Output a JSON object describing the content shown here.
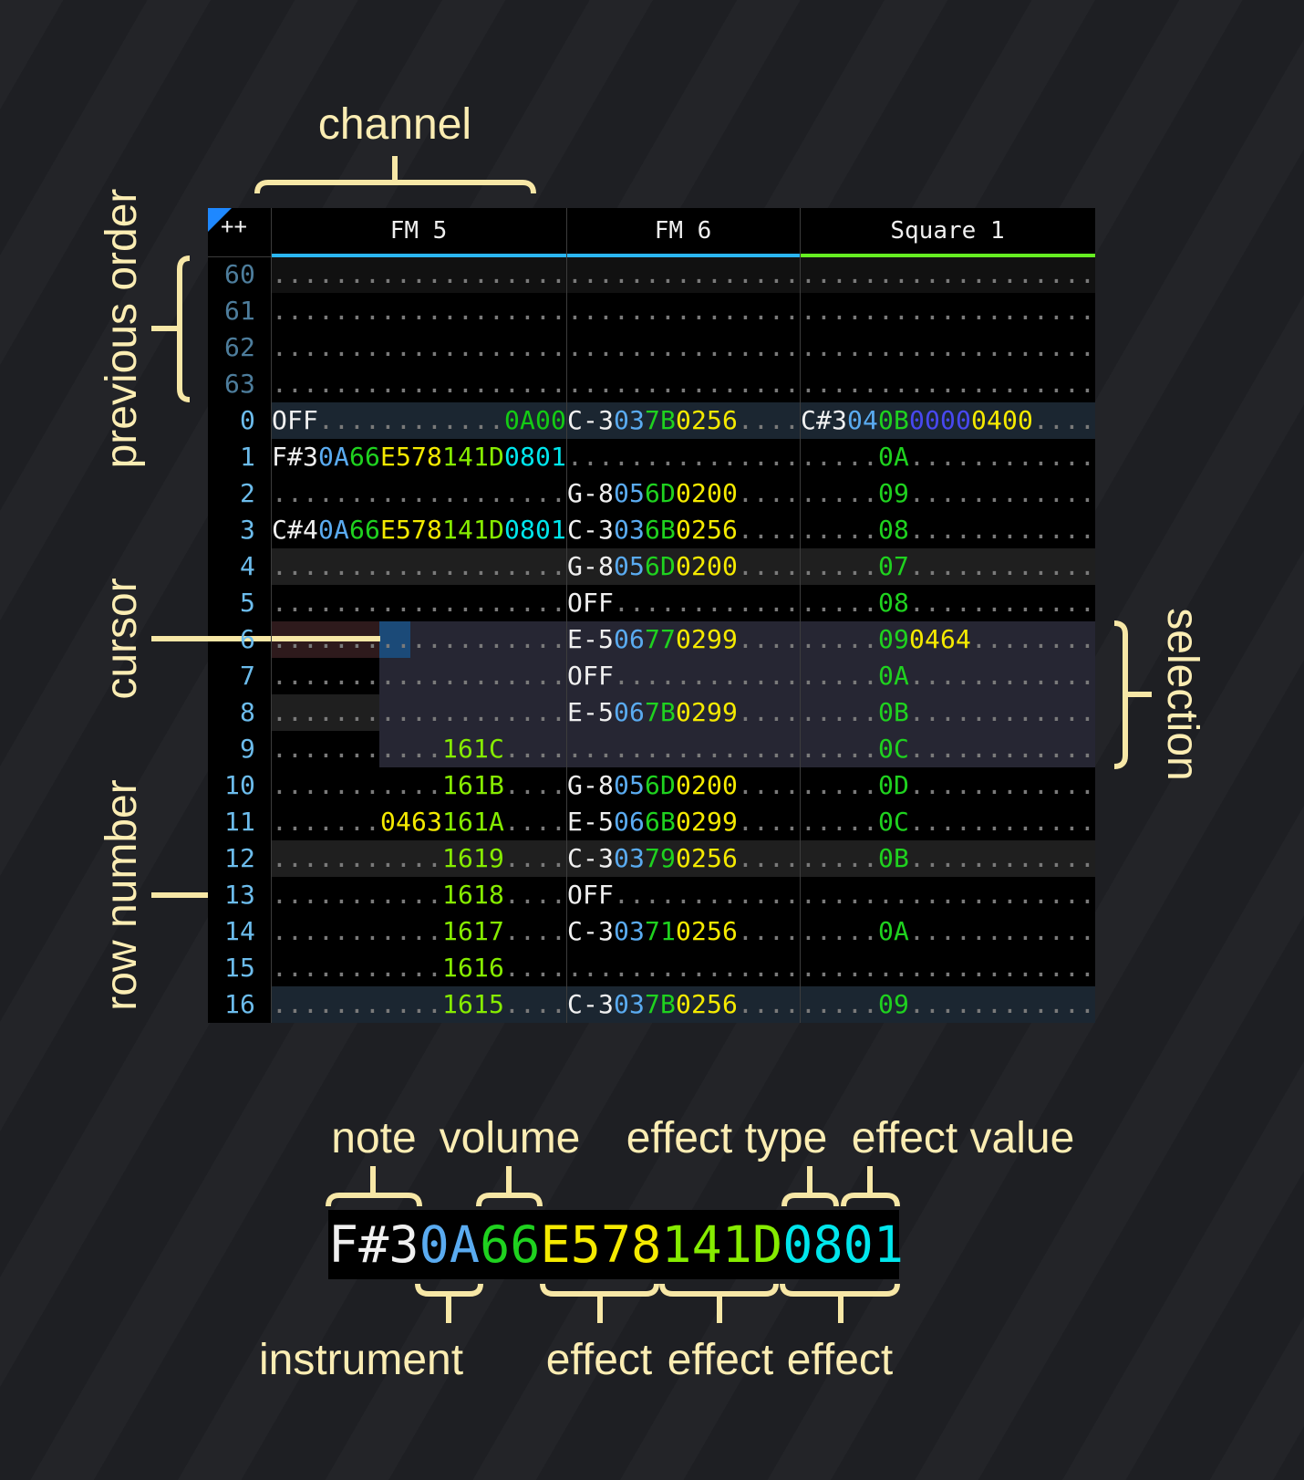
{
  "colors": {
    "n": "#f0f0f0",
    "i": "#5aabf0",
    "v": "#1fd21f",
    "y": "#f5ea00",
    "l": "#86ec00",
    "c": "#00e6ec",
    "p": "#4848f0",
    "g": "#14cc14",
    "d": "#7a7a7a",
    "rownum_prev": "#4d7d9c",
    "rownum": "#6cbcec",
    "annotation": "#fbedb3"
  },
  "corner_label": "++",
  "channels": [
    {
      "name": "FM 5",
      "color": "#2bb6f2"
    },
    {
      "name": "FM 6",
      "color": "#2bb6f2"
    },
    {
      "name": "Square 1",
      "color": "#66ee22"
    }
  ],
  "selection": {
    "rows": [
      6,
      9
    ],
    "from_channel": "FM 5",
    "from_column": "effect 1",
    "to_channel": "Square 1"
  },
  "cursor": {
    "row": 6,
    "channel": "FM 5",
    "column": "effect 1 type"
  },
  "rows": [
    {
      "num": "60",
      "prev": true,
      "cells": [
        [
          [
            "...................",
            "d"
          ]
        ],
        [
          [
            "...............",
            "d"
          ]
        ],
        [
          [
            "...................",
            "d"
          ]
        ]
      ]
    },
    {
      "num": "61",
      "prev": true,
      "cells": [
        [
          [
            "...................",
            "d"
          ]
        ],
        [
          [
            "...............",
            "d"
          ]
        ],
        [
          [
            "...................",
            "d"
          ]
        ]
      ]
    },
    {
      "num": "62",
      "prev": true,
      "cells": [
        [
          [
            "...................",
            "d"
          ]
        ],
        [
          [
            "...............",
            "d"
          ]
        ],
        [
          [
            "...................",
            "d"
          ]
        ]
      ]
    },
    {
      "num": "63",
      "prev": true,
      "cells": [
        [
          [
            "...................",
            "d"
          ]
        ],
        [
          [
            "...............",
            "d"
          ]
        ],
        [
          [
            "...................",
            "d"
          ]
        ]
      ]
    },
    {
      "num": "0",
      "cells": [
        [
          [
            "OFF",
            "n"
          ],
          [
            "............",
            "d"
          ],
          [
            "0A00",
            "g"
          ]
        ],
        [
          [
            "C-3",
            "n"
          ],
          [
            "03",
            "i"
          ],
          [
            "7B",
            "v"
          ],
          [
            "0256",
            "y"
          ],
          [
            "....",
            "d"
          ]
        ],
        [
          [
            "C#3",
            "n"
          ],
          [
            "04",
            "i"
          ],
          [
            "0B",
            "v"
          ],
          [
            "0000",
            "p"
          ],
          [
            "0400",
            "y"
          ],
          [
            "....",
            "d"
          ]
        ]
      ]
    },
    {
      "num": "1",
      "cells": [
        [
          [
            "F#3",
            "n"
          ],
          [
            "0A",
            "i"
          ],
          [
            "66",
            "v"
          ],
          [
            "E578",
            "y"
          ],
          [
            "141D",
            "l"
          ],
          [
            "0801",
            "c"
          ]
        ],
        [
          [
            "...............",
            "d"
          ]
        ],
        [
          [
            ".....",
            "d"
          ],
          [
            "0A",
            "v"
          ],
          [
            "............",
            "d"
          ]
        ]
      ]
    },
    {
      "num": "2",
      "cells": [
        [
          [
            "...................",
            "d"
          ]
        ],
        [
          [
            "G-8",
            "n"
          ],
          [
            "05",
            "i"
          ],
          [
            "6D",
            "v"
          ],
          [
            "0200",
            "y"
          ],
          [
            "....",
            "d"
          ]
        ],
        [
          [
            ".....",
            "d"
          ],
          [
            "09",
            "v"
          ],
          [
            "............",
            "d"
          ]
        ]
      ]
    },
    {
      "num": "3",
      "cells": [
        [
          [
            "C#4",
            "n"
          ],
          [
            "0A",
            "i"
          ],
          [
            "66",
            "v"
          ],
          [
            "E578",
            "y"
          ],
          [
            "141D",
            "l"
          ],
          [
            "0801",
            "c"
          ]
        ],
        [
          [
            "C-3",
            "n"
          ],
          [
            "03",
            "i"
          ],
          [
            "6B",
            "v"
          ],
          [
            "0256",
            "y"
          ],
          [
            "....",
            "d"
          ]
        ],
        [
          [
            ".....",
            "d"
          ],
          [
            "08",
            "v"
          ],
          [
            "............",
            "d"
          ]
        ]
      ]
    },
    {
      "num": "4",
      "cells": [
        [
          [
            "...................",
            "d"
          ]
        ],
        [
          [
            "G-8",
            "n"
          ],
          [
            "05",
            "i"
          ],
          [
            "6D",
            "v"
          ],
          [
            "0200",
            "y"
          ],
          [
            "....",
            "d"
          ]
        ],
        [
          [
            ".....",
            "d"
          ],
          [
            "07",
            "v"
          ],
          [
            "............",
            "d"
          ]
        ]
      ]
    },
    {
      "num": "5",
      "cells": [
        [
          [
            "...................",
            "d"
          ]
        ],
        [
          [
            "OFF",
            "n"
          ],
          [
            "............",
            "d"
          ]
        ],
        [
          [
            ".....",
            "d"
          ],
          [
            "08",
            "v"
          ],
          [
            "............",
            "d"
          ]
        ]
      ]
    },
    {
      "num": "6",
      "cells": [
        [
          [
            "...................",
            "d"
          ]
        ],
        [
          [
            "E-5",
            "n"
          ],
          [
            "06",
            "i"
          ],
          [
            "77",
            "v"
          ],
          [
            "0299",
            "y"
          ],
          [
            "....",
            "d"
          ]
        ],
        [
          [
            ".....",
            "d"
          ],
          [
            "09",
            "v"
          ],
          [
            "0464",
            "y"
          ],
          [
            "........",
            "d"
          ]
        ]
      ]
    },
    {
      "num": "7",
      "cells": [
        [
          [
            "...................",
            "d"
          ]
        ],
        [
          [
            "OFF",
            "n"
          ],
          [
            "............",
            "d"
          ]
        ],
        [
          [
            ".....",
            "d"
          ],
          [
            "0A",
            "v"
          ],
          [
            "............",
            "d"
          ]
        ]
      ]
    },
    {
      "num": "8",
      "cells": [
        [
          [
            "...................",
            "d"
          ]
        ],
        [
          [
            "E-5",
            "n"
          ],
          [
            "06",
            "i"
          ],
          [
            "7B",
            "v"
          ],
          [
            "0299",
            "y"
          ],
          [
            "....",
            "d"
          ]
        ],
        [
          [
            ".....",
            "d"
          ],
          [
            "0B",
            "v"
          ],
          [
            "............",
            "d"
          ]
        ]
      ]
    },
    {
      "num": "9",
      "cells": [
        [
          [
            "...........",
            "d"
          ],
          [
            "161C",
            "l"
          ],
          [
            "....",
            "d"
          ]
        ],
        [
          [
            "...............",
            "d"
          ]
        ],
        [
          [
            ".....",
            "d"
          ],
          [
            "0C",
            "v"
          ],
          [
            "............",
            "d"
          ]
        ]
      ]
    },
    {
      "num": "10",
      "cells": [
        [
          [
            "...........",
            "d"
          ],
          [
            "161B",
            "l"
          ],
          [
            "....",
            "d"
          ]
        ],
        [
          [
            "G-8",
            "n"
          ],
          [
            "05",
            "i"
          ],
          [
            "6D",
            "v"
          ],
          [
            "0200",
            "y"
          ],
          [
            "....",
            "d"
          ]
        ],
        [
          [
            ".....",
            "d"
          ],
          [
            "0D",
            "v"
          ],
          [
            "............",
            "d"
          ]
        ]
      ]
    },
    {
      "num": "11",
      "cells": [
        [
          [
            ".......",
            "d"
          ],
          [
            "0463",
            "y"
          ],
          [
            "161A",
            "l"
          ],
          [
            "....",
            "d"
          ]
        ],
        [
          [
            "E-5",
            "n"
          ],
          [
            "06",
            "i"
          ],
          [
            "6B",
            "v"
          ],
          [
            "0299",
            "y"
          ],
          [
            "....",
            "d"
          ]
        ],
        [
          [
            ".....",
            "d"
          ],
          [
            "0C",
            "v"
          ],
          [
            "............",
            "d"
          ]
        ]
      ]
    },
    {
      "num": "12",
      "cells": [
        [
          [
            "...........",
            "d"
          ],
          [
            "1619",
            "l"
          ],
          [
            "....",
            "d"
          ]
        ],
        [
          [
            "C-3",
            "n"
          ],
          [
            "03",
            "i"
          ],
          [
            "79",
            "v"
          ],
          [
            "0256",
            "y"
          ],
          [
            "....",
            "d"
          ]
        ],
        [
          [
            ".....",
            "d"
          ],
          [
            "0B",
            "v"
          ],
          [
            "............",
            "d"
          ]
        ]
      ]
    },
    {
      "num": "13",
      "cells": [
        [
          [
            "...........",
            "d"
          ],
          [
            "1618",
            "l"
          ],
          [
            "....",
            "d"
          ]
        ],
        [
          [
            "OFF",
            "n"
          ],
          [
            "............",
            "d"
          ]
        ],
        [
          [
            "...................",
            "d"
          ]
        ]
      ]
    },
    {
      "num": "14",
      "cells": [
        [
          [
            "...........",
            "d"
          ],
          [
            "1617",
            "l"
          ],
          [
            "....",
            "d"
          ]
        ],
        [
          [
            "C-3",
            "n"
          ],
          [
            "03",
            "i"
          ],
          [
            "71",
            "v"
          ],
          [
            "0256",
            "y"
          ],
          [
            "....",
            "d"
          ]
        ],
        [
          [
            ".....",
            "d"
          ],
          [
            "0A",
            "v"
          ],
          [
            "............",
            "d"
          ]
        ]
      ]
    },
    {
      "num": "15",
      "cells": [
        [
          [
            "...........",
            "d"
          ],
          [
            "1616",
            "l"
          ],
          [
            "....",
            "d"
          ]
        ],
        [
          [
            "...............",
            "d"
          ]
        ],
        [
          [
            "...................",
            "d"
          ]
        ]
      ]
    },
    {
      "num": "16",
      "cells": [
        [
          [
            "...........",
            "d"
          ],
          [
            "1615",
            "l"
          ],
          [
            "....",
            "d"
          ]
        ],
        [
          [
            "C-3",
            "n"
          ],
          [
            "03",
            "i"
          ],
          [
            "7B",
            "v"
          ],
          [
            "0256",
            "y"
          ],
          [
            "....",
            "d"
          ]
        ],
        [
          [
            ".....",
            "d"
          ],
          [
            "09",
            "v"
          ],
          [
            "............",
            "d"
          ]
        ]
      ]
    }
  ],
  "annotations": {
    "channel": "channel",
    "previous_order": "previous order",
    "cursor": "cursor",
    "row_number": "row number",
    "selection": "selection",
    "note": "note",
    "volume": "volume",
    "effect_type": "effect type",
    "effect_value": "effect value",
    "instrument": "instrument",
    "effect_1": "effect",
    "effect_2": "effect",
    "effect_3": "effect"
  },
  "legend_example": [
    [
      "F#3",
      "n"
    ],
    [
      "0A",
      "i"
    ],
    [
      "66",
      "v"
    ],
    [
      "E578",
      "y"
    ],
    [
      "141D",
      "l"
    ],
    [
      "0801",
      "c"
    ]
  ]
}
